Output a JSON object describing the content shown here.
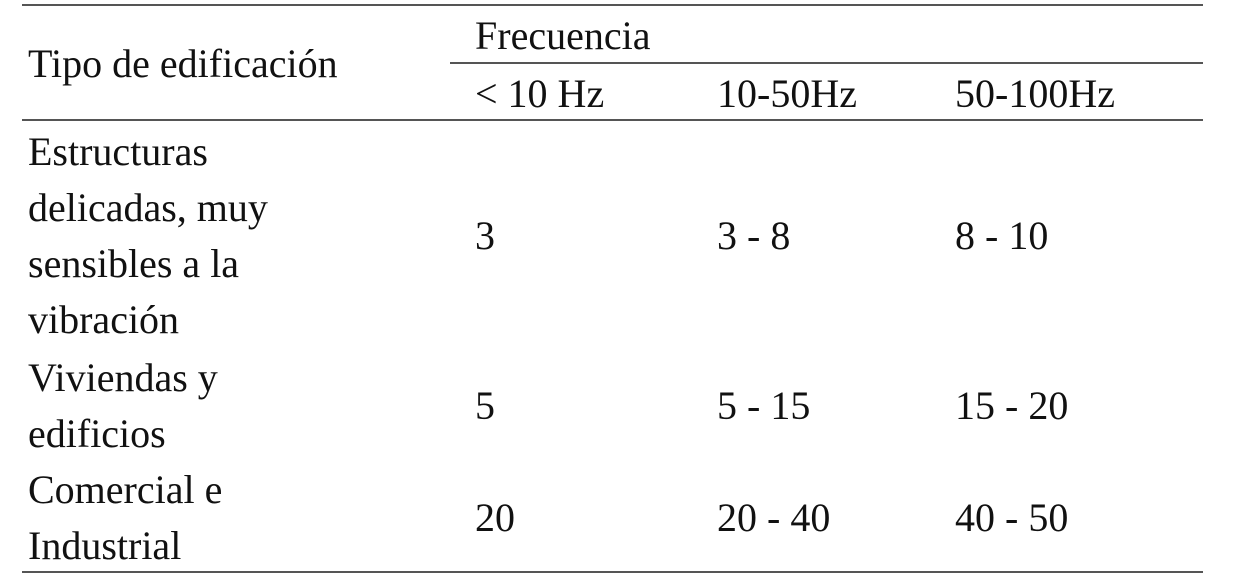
{
  "table": {
    "header": {
      "row_label": "Tipo de edificación",
      "group": "Frecuencia",
      "columns": [
        "< 10 Hz",
        "10-50Hz",
        "50-100Hz"
      ]
    },
    "rows": [
      [
        "Estructuras delicadas, muy sensibles a la vibración",
        "3",
        "3 - 8",
        "8 - 10"
      ],
      [
        "Viviendas y edificios",
        "5",
        "5 - 15",
        "15 - 20"
      ],
      [
        "Comercial e Industrial",
        "20",
        "20 - 40",
        "40 - 50"
      ]
    ]
  }
}
